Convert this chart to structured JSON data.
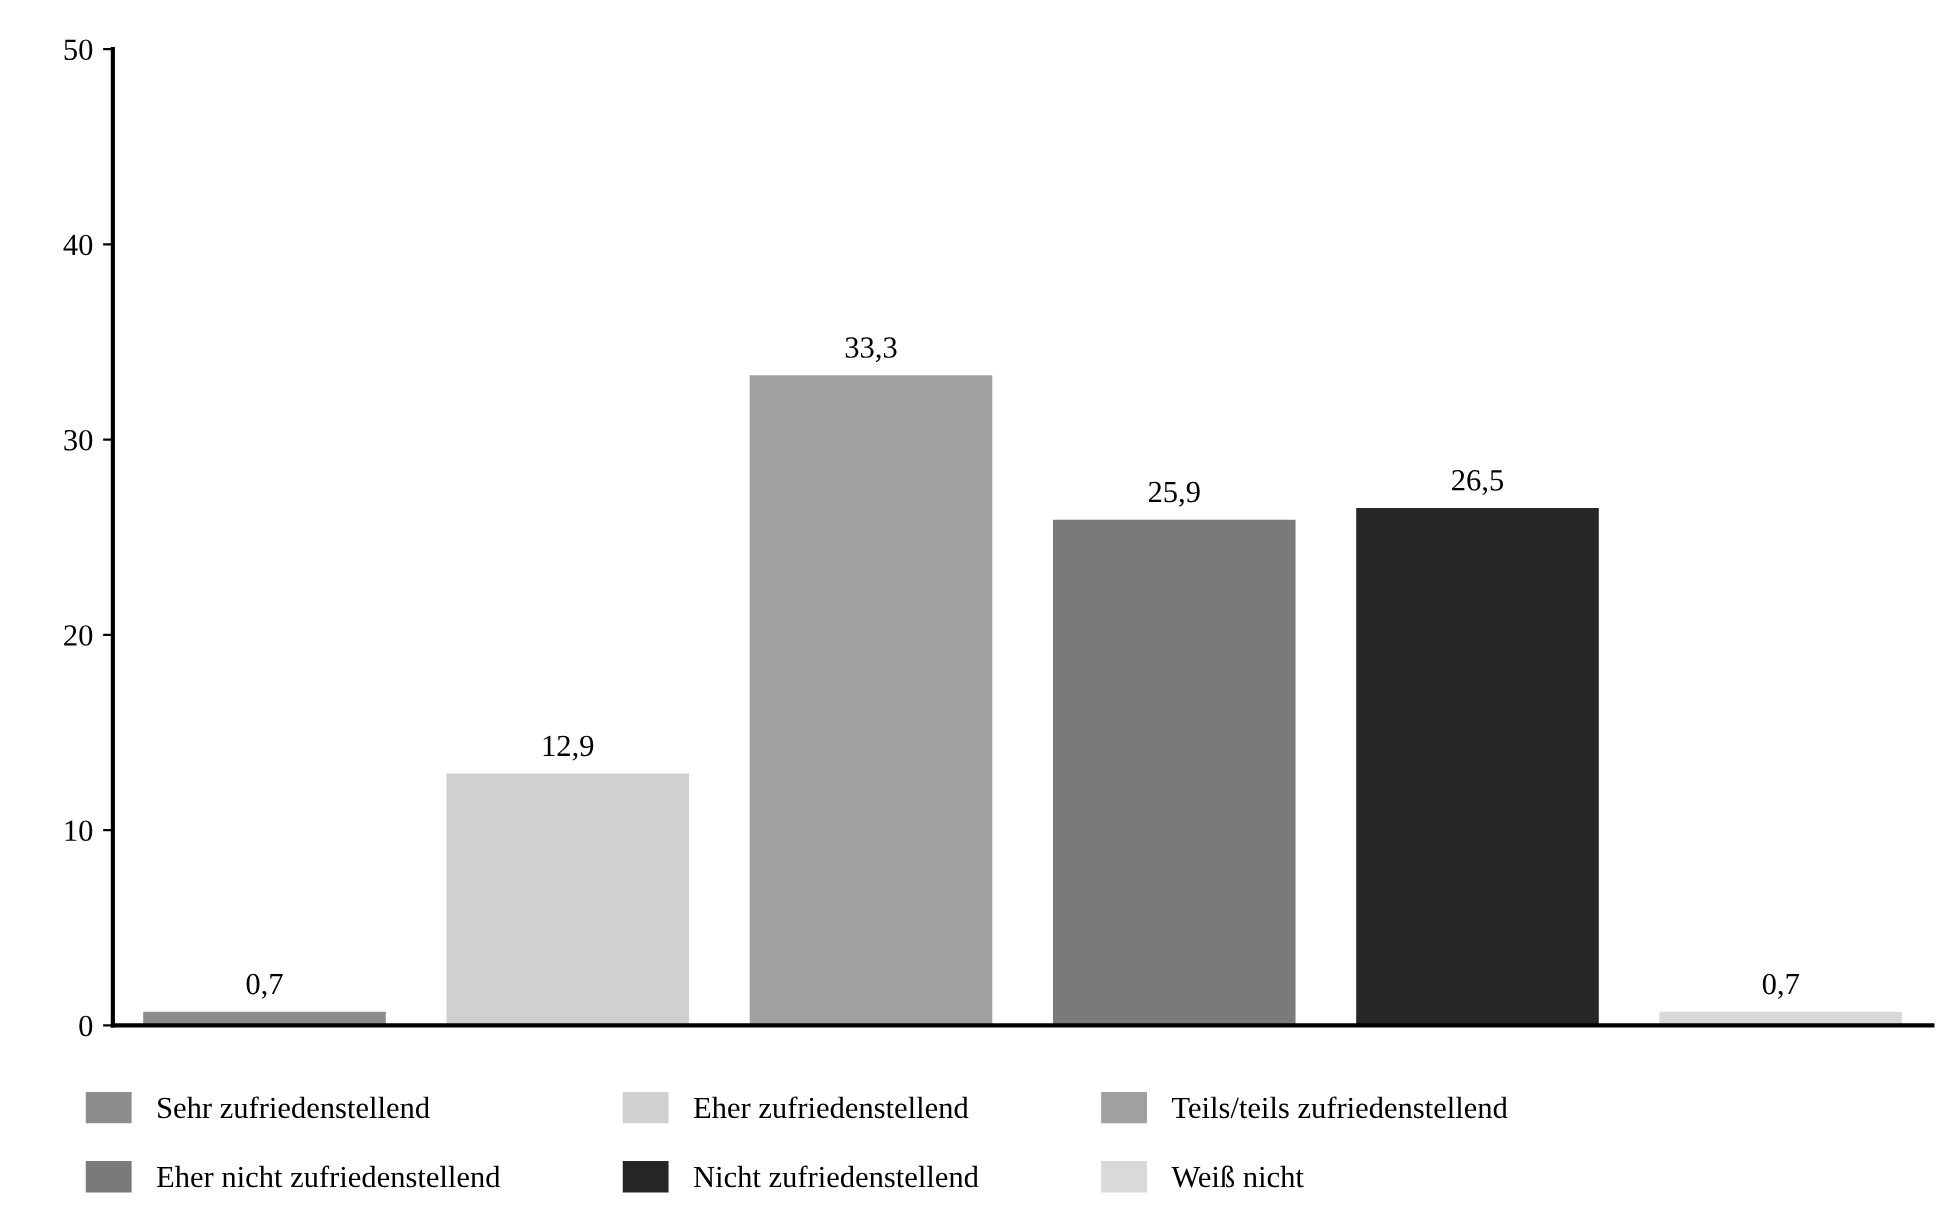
{
  "chart_data": {
    "type": "bar",
    "categories": [
      null,
      null,
      null,
      null,
      null,
      null
    ],
    "series": [
      {
        "name": "Sehr zufriedenstellend",
        "color": "#8c8c8c",
        "values": [
          0.7,
          null,
          null,
          null,
          null,
          null
        ],
        "value_labels": [
          "0,7",
          null,
          null,
          null,
          null,
          null
        ]
      },
      {
        "name": "Eher zufriedenstellend",
        "color": "#d0d0d0",
        "values": [
          null,
          12.9,
          null,
          null,
          null,
          null
        ],
        "value_labels": [
          null,
          "12,9",
          null,
          null,
          null,
          null
        ]
      },
      {
        "name": "Teils/teils zufriedenstellend",
        "color": "#a0a0a0",
        "values": [
          null,
          null,
          33.3,
          null,
          null,
          null
        ],
        "value_labels": [
          null,
          null,
          "33,3",
          null,
          null,
          null
        ]
      },
      {
        "name": "Eher nicht zufriedenstellend",
        "color": "#7a7a7a",
        "values": [
          null,
          null,
          null,
          25.9,
          null,
          null
        ],
        "value_labels": [
          null,
          null,
          null,
          "25,9",
          null,
          null
        ]
      },
      {
        "name": "Nicht zufriedenstellend",
        "color": "#262626",
        "values": [
          null,
          null,
          null,
          null,
          26.5,
          null
        ],
        "value_labels": [
          null,
          null,
          null,
          null,
          "26,5",
          null
        ]
      },
      {
        "name": "Weiß nicht",
        "color": "#d9d9d9",
        "values": [
          null,
          null,
          null,
          null,
          null,
          0.7
        ],
        "value_labels": [
          null,
          null,
          null,
          null,
          null,
          "0,7"
        ]
      }
    ],
    "ylim": [
      0,
      50
    ],
    "yticks": [
      0,
      10,
      20,
      30,
      40,
      50
    ],
    "grid": false,
    "legend": "bottom",
    "tick_labels": "y"
  }
}
